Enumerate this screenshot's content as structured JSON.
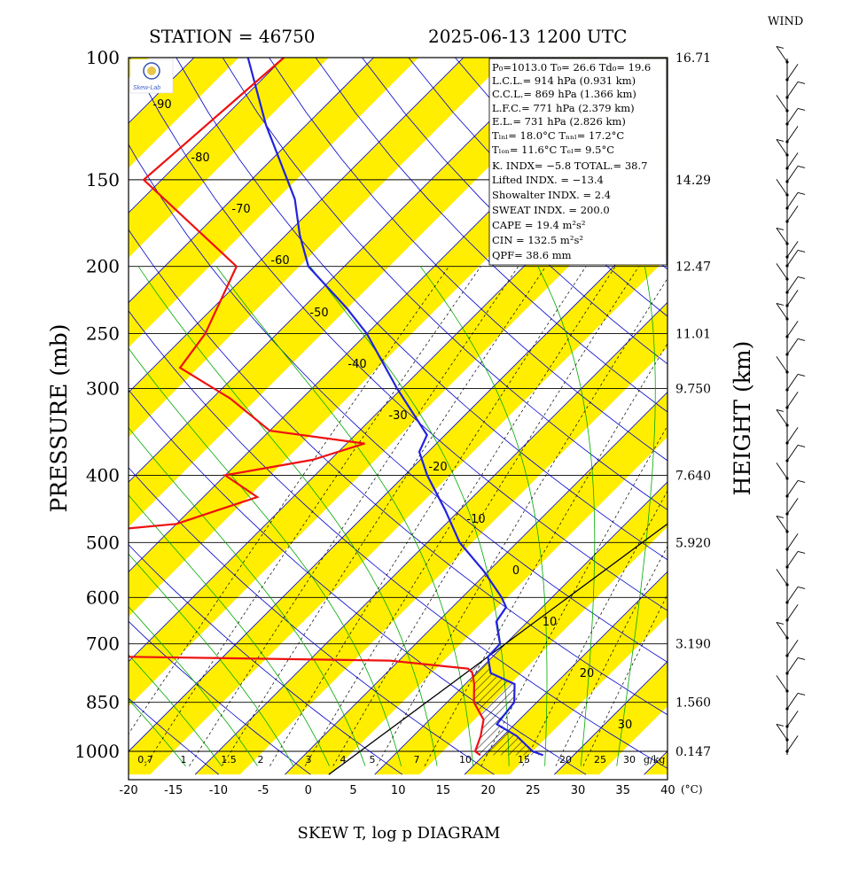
{
  "header": {
    "station": "STATION = 46750",
    "datetime": "2025-06-13 1200 UTC",
    "wind_title": "WIND"
  },
  "axes": {
    "ylabel_left": "PRESSURE (mb)",
    "ylabel_right": "HEIGHT (km)",
    "xlabel": "SKEW T, log p DIAGRAM",
    "x_unit": "(°C)",
    "mixing_unit": "g/kg",
    "pressure_ticks": [
      {
        "p": 100,
        "label": "100"
      },
      {
        "p": 150,
        "label": "150"
      },
      {
        "p": 200,
        "label": "200"
      },
      {
        "p": 250,
        "label": "250"
      },
      {
        "p": 300,
        "label": "300"
      },
      {
        "p": 400,
        "label": "400"
      },
      {
        "p": 500,
        "label": "500"
      },
      {
        "p": 600,
        "label": "600"
      },
      {
        "p": 700,
        "label": "700"
      },
      {
        "p": 850,
        "label": "850"
      },
      {
        "p": 1000,
        "label": "1000"
      }
    ],
    "height_ticks": [
      {
        "p": 100,
        "label": "16.71"
      },
      {
        "p": 150,
        "label": "14.29"
      },
      {
        "p": 200,
        "label": "12.47"
      },
      {
        "p": 250,
        "label": "11.01"
      },
      {
        "p": 300,
        "label": "9.750"
      },
      {
        "p": 400,
        "label": "7.640"
      },
      {
        "p": 500,
        "label": "5.920"
      },
      {
        "p": 700,
        "label": "3.190"
      },
      {
        "p": 850,
        "label": "1.560"
      },
      {
        "p": 1000,
        "label": "0.147"
      }
    ],
    "temp_ticks": [
      "-20",
      "-15",
      "-10",
      "-5",
      "0",
      "5",
      "10",
      "15",
      "20",
      "25",
      "30",
      "35",
      "40"
    ],
    "isotherm_labels": [
      "-90",
      "-80",
      "-70",
      "-60",
      "-50",
      "-40",
      "-30",
      "-20",
      "-10",
      "0",
      "10",
      "20",
      "30"
    ],
    "mixing_labels": [
      "0.7",
      "1",
      "1.5",
      "2",
      "3",
      "4",
      "5",
      "7",
      "10",
      "15",
      "20",
      "25",
      "30"
    ]
  },
  "stats": {
    "p0": "P₀=1013.0  T₀= 26.6  Td₀= 19.6",
    "lcl": "L.C.L.= 914 hPa (0.931 km)",
    "ccl": "C.C.L.= 869 hPa (1.366 km)",
    "lfc": "L.F.C.= 771 hPa (2.379 km)",
    "el": "E.L.= 731 hPa (2.826 km)",
    "tlcl": "Tₗₙₗ= 18.0°C  Tₙₙₗ= 17.2°C",
    "tlfc": "Tₗₒₙ= 11.6°C  Tₑₗ=  9.5°C",
    "kindex": "K. INDX= −5.8   TOTAL.= 38.7",
    "lifted": "Lifted INDX. = −13.4",
    "showalter": "Showalter INDX. =     2.4",
    "sweat": "SWEAT INDX. =   200.0",
    "cape": "CAPE =    19.4 m²s²",
    "cin": "CIN   =   132.5 m²s²",
    "qpf": "QPF= 38.6 mm"
  },
  "colors": {
    "temperature": "#2222dd",
    "dewpoint": "#ee1111",
    "band": "#ffee00",
    "isotherm": "#0000cc",
    "dry_adiabat": "#00aa00",
    "grid": "#000000"
  },
  "chart_data": {
    "type": "skew-t log-p",
    "title": "SKEW T, log p DIAGRAM",
    "ylabel": "PRESSURE (mb)",
    "xlabel": "(°C)",
    "pressure_range": [
      100,
      1050
    ],
    "temp_range": [
      -20,
      40
    ],
    "series": [
      {
        "name": "temperature",
        "points": [
          {
            "p": 1013,
            "t": 26.6
          },
          {
            "p": 1000,
            "t": 25.0
          },
          {
            "p": 950,
            "t": 21.5
          },
          {
            "p": 914,
            "t": 18.0
          },
          {
            "p": 850,
            "t": 17.5
          },
          {
            "p": 800,
            "t": 15.5
          },
          {
            "p": 771,
            "t": 11.6
          },
          {
            "p": 731,
            "t": 9.5
          },
          {
            "p": 700,
            "t": 9.4
          },
          {
            "p": 650,
            "t": 6.5
          },
          {
            "p": 620,
            "t": 6.0
          },
          {
            "p": 600,
            "t": 4.4
          },
          {
            "p": 550,
            "t": -0.5
          },
          {
            "p": 500,
            "t": -6.4
          },
          {
            "p": 450,
            "t": -11.5
          },
          {
            "p": 400,
            "t": -17.5
          },
          {
            "p": 370,
            "t": -21.0
          },
          {
            "p": 350,
            "t": -22.0
          },
          {
            "p": 300,
            "t": -30.5
          },
          {
            "p": 250,
            "t": -40.0
          },
          {
            "p": 230,
            "t": -45.0
          },
          {
            "p": 200,
            "t": -54.0
          },
          {
            "p": 180,
            "t": -58.5
          },
          {
            "p": 160,
            "t": -63.0
          },
          {
            "p": 150,
            "t": -66.0
          },
          {
            "p": 125,
            "t": -74.5
          },
          {
            "p": 100,
            "t": -84.0
          }
        ]
      },
      {
        "name": "dewpoint",
        "points": [
          {
            "p": 1013,
            "t": 19.6
          },
          {
            "p": 1000,
            "t": 18.6
          },
          {
            "p": 950,
            "t": 17.5
          },
          {
            "p": 900,
            "t": 16.0
          },
          {
            "p": 850,
            "t": 13.0
          },
          {
            "p": 800,
            "t": 11.0
          },
          {
            "p": 770,
            "t": 9.5
          },
          {
            "p": 760,
            "t": 8.6
          },
          {
            "p": 740,
            "t": -1.0
          },
          {
            "p": 725,
            "t": -49.0
          },
          {
            "p": 710,
            "t": -52.0
          },
          {
            "p": 660,
            "t": -55.0
          },
          {
            "p": 500,
            "t": -60.0
          },
          {
            "p": 470,
            "t": -40.0
          },
          {
            "p": 430,
            "t": -34.0
          },
          {
            "p": 400,
            "t": -40.0
          },
          {
            "p": 380,
            "t": -32.0
          },
          {
            "p": 360,
            "t": -28.0
          },
          {
            "p": 345,
            "t": -40.0
          },
          {
            "p": 310,
            "t": -48.0
          },
          {
            "p": 280,
            "t": -57.0
          },
          {
            "p": 250,
            "t": -58.0
          },
          {
            "p": 200,
            "t": -62.0
          },
          {
            "p": 150,
            "t": -82.0
          },
          {
            "p": 100,
            "t": -80.0
          }
        ]
      }
    ],
    "parcel_line": {
      "p_top": 250,
      "t_bottom": 25.0,
      "p_bottom": 1000
    }
  }
}
